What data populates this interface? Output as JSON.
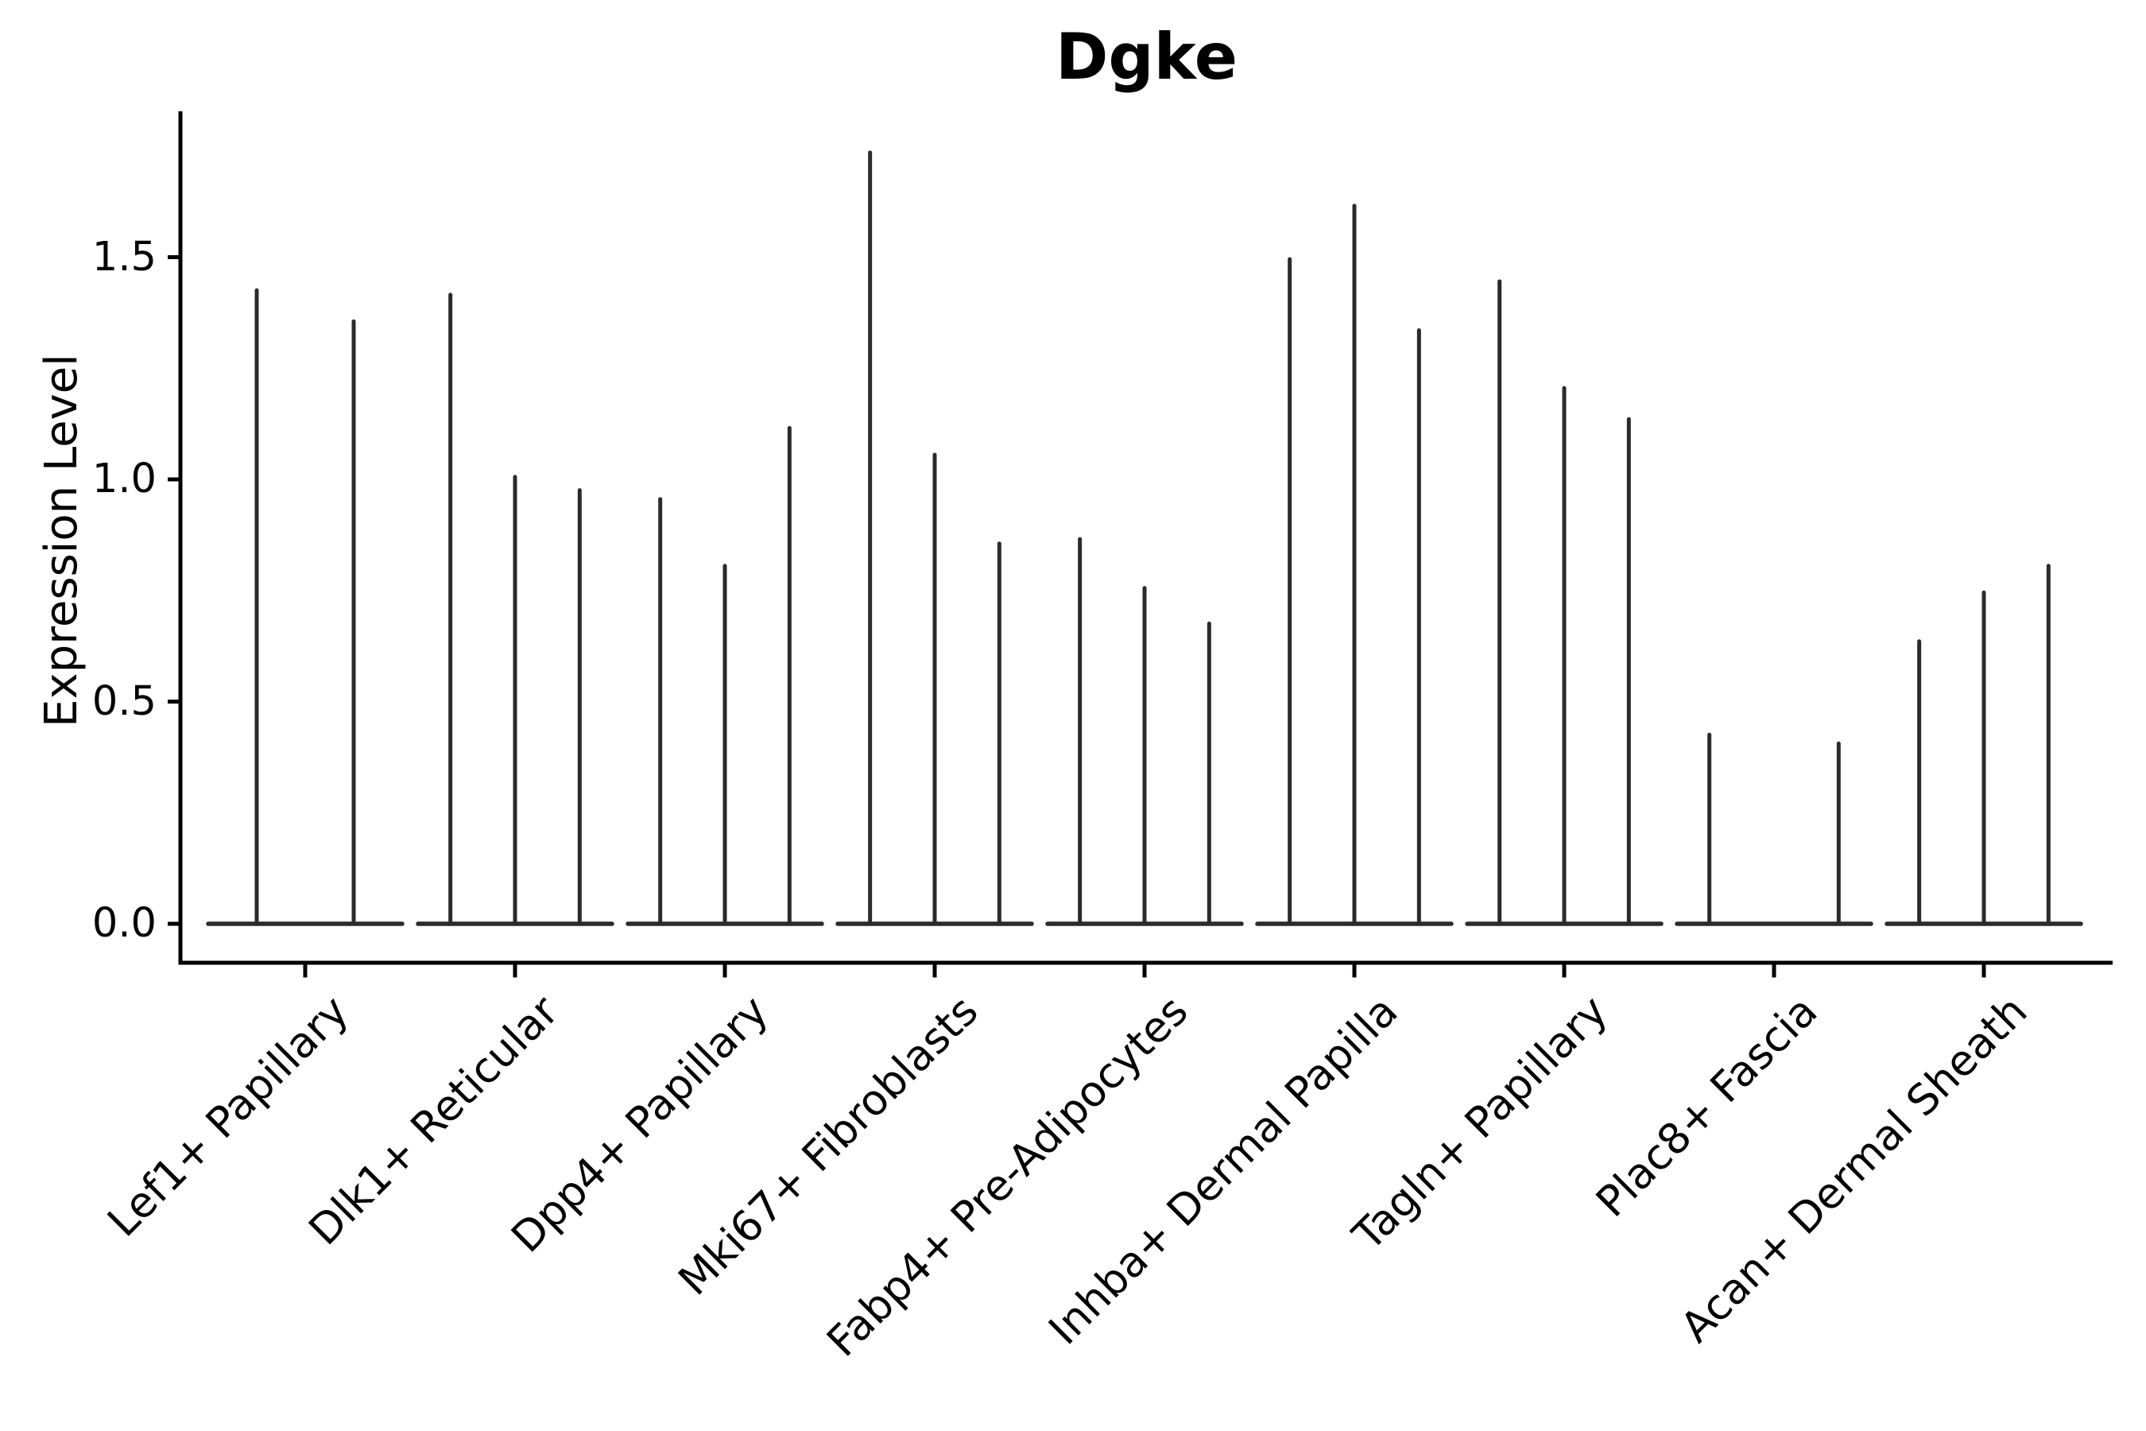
{
  "figure": {
    "title": "Dgke"
  },
  "y_axis": {
    "label": "Expression Level",
    "tick_labels": [
      "0.0",
      "0.5",
      "1.0",
      "1.5"
    ]
  },
  "x_axis": {
    "categories": [
      "Lef1+ Papillary",
      "Dlk1+ Reticular",
      "Dpp4+ Papillary",
      "Mki67+ Fibroblasts",
      "Fabp4+ Pre-Adipocytes",
      "Inhba+ Dermal Papilla",
      "Tagln+ Papillary",
      "Plac8+ Fascia",
      "Acan+ Dermal Sheath"
    ]
  },
  "chart_data": {
    "type": "violin",
    "title": "Dgke",
    "xlabel": "",
    "ylabel": "Expression Level",
    "ylim": [
      -0.09,
      1.83
    ],
    "yticks": [
      0.0,
      0.5,
      1.0,
      1.5
    ],
    "grid": false,
    "legend": "none",
    "style_hint": "each violin is collapsed flat at expression 0 with a single thin vertical spike reaching its maximum value; 2-3 split violins per category; a value of 0 means a flat violin with no spike",
    "categories": [
      "Lef1+ Papillary",
      "Dlk1+ Reticular",
      "Dpp4+ Papillary",
      "Mki67+ Fibroblasts",
      "Fabp4+ Pre-Adipocytes",
      "Inhba+ Dermal Papilla",
      "Tagln+ Papillary",
      "Plac8+ Fascia",
      "Acan+ Dermal Sheath"
    ],
    "violin_spike_max_values": [
      [
        1.43,
        1.36
      ],
      [
        1.42,
        1.01,
        0.98
      ],
      [
        0.96,
        0.81,
        1.12
      ],
      [
        1.74,
        1.06,
        0.86
      ],
      [
        0.87,
        0.76,
        0.68
      ],
      [
        1.5,
        1.62,
        1.34
      ],
      [
        1.45,
        1.21,
        1.14
      ],
      [
        0.43,
        0.0,
        0.41
      ],
      [
        0.64,
        0.75,
        0.81
      ]
    ],
    "colors": {
      "violin_line": "#2b2b2b",
      "axis": "#000000",
      "text": "#000000",
      "background": "#ffffff"
    }
  }
}
